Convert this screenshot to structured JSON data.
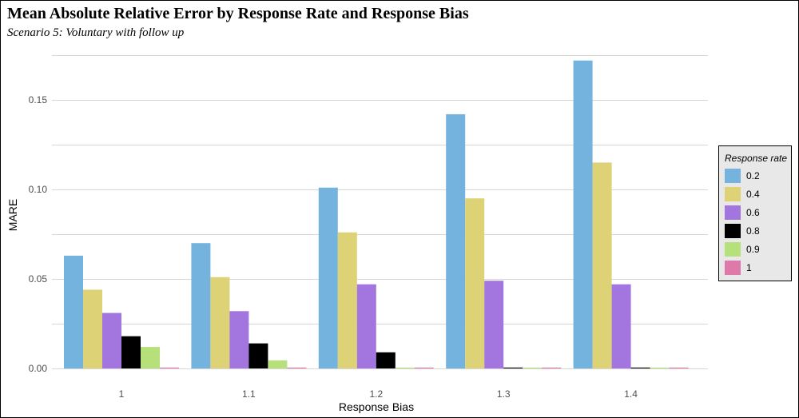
{
  "chart_data": {
    "type": "bar",
    "title": "Mean Absolute Relative Error by Response Rate and Response Bias",
    "subtitle": "Scenario 5: Voluntary with follow up",
    "xlabel": "Response Bias",
    "ylabel": "MARE",
    "categories": [
      "1",
      "1.1",
      "1.2",
      "1.3",
      "1.4"
    ],
    "ylim": [
      0,
      0.18
    ],
    "yticks": [
      0.0,
      0.05,
      0.1,
      0.15
    ],
    "ytick_labels": [
      "0.00",
      "0.05",
      "0.10",
      "0.15"
    ],
    "grid": true,
    "legend_title": "Response rate",
    "legend_position": "right",
    "series": [
      {
        "name": "0.2",
        "color": "#74b3de",
        "values": [
          0.063,
          0.07,
          0.101,
          0.142,
          0.172
        ]
      },
      {
        "name": "0.4",
        "color": "#ddd276",
        "values": [
          0.044,
          0.051,
          0.076,
          0.095,
          0.115
        ]
      },
      {
        "name": "0.6",
        "color": "#a375de",
        "values": [
          0.031,
          0.032,
          0.047,
          0.049,
          0.047
        ]
      },
      {
        "name": "0.8",
        "color": "#000000",
        "values": [
          0.018,
          0.014,
          0.009,
          0.0005,
          0.0005
        ]
      },
      {
        "name": "0.9",
        "color": "#b5e07a",
        "values": [
          0.012,
          0.0045,
          0.0005,
          0.0005,
          0.0005
        ]
      },
      {
        "name": "1",
        "color": "#de7aa9",
        "values": [
          0.0005,
          0.0005,
          0.0005,
          0.0005,
          0.0005
        ]
      }
    ]
  }
}
